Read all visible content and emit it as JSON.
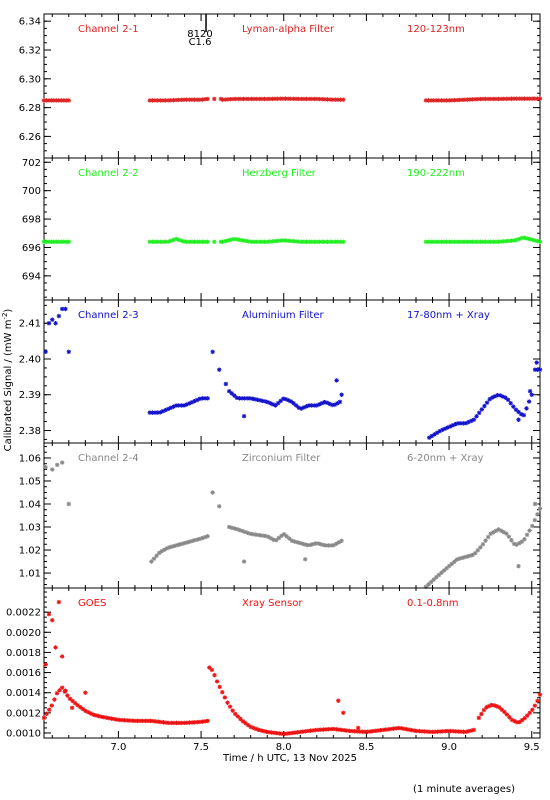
{
  "chart_data": {
    "type": "scatter",
    "xlabel": "Time / h UTC, 13 Nov 2025",
    "ylabel": "Calibrated Signal / (mW m",
    "ylabel_exp": "-2",
    "ylabel_close": ")",
    "footnote": "(1 minute averages)",
    "xlim": [
      6.55,
      9.55
    ],
    "xticks": [
      7.0,
      7.5,
      8.0,
      8.5,
      9.0,
      9.5
    ],
    "xticklabels": [
      "7.0",
      "7.5",
      "8.0",
      "8.5",
      "9.0",
      "9.5"
    ],
    "marker_annotation": {
      "x": 7.53,
      "label_top": "8120",
      "label_bottom": "C1.6"
    },
    "panels": [
      {
        "channel": "Channel 2-1",
        "filter": "Lyman-alpha Filter",
        "band": "120-123nm",
        "color": "#dd2222",
        "ylim": [
          6.245,
          6.345
        ],
        "yticks": [
          6.26,
          6.28,
          6.3,
          6.32,
          6.34
        ],
        "yticklabels": [
          "6.26",
          "6.28",
          "6.30",
          "6.32",
          "6.34"
        ],
        "series": [
          {
            "x": [
              6.55,
              6.61,
              6.66,
              6.7
            ],
            "y": [
              6.285,
              6.285,
              6.285,
              6.285
            ]
          },
          {
            "x": [
              7.19,
              7.3,
              7.4,
              7.5,
              7.54
            ],
            "y": [
              6.285,
              6.285,
              6.2855,
              6.2855,
              6.286
            ]
          },
          {
            "x": [
              7.63,
              7.7,
              7.8,
              7.9,
              8.0,
              8.1,
              8.2,
              8.3,
              8.36
            ],
            "y": [
              6.2855,
              6.286,
              6.286,
              6.286,
              6.2862,
              6.286,
              6.286,
              6.2855,
              6.2855
            ]
          },
          {
            "x": [
              8.86,
              9.0,
              9.1,
              9.2,
              9.3,
              9.4,
              9.55
            ],
            "y": [
              6.285,
              6.285,
              6.2855,
              6.286,
              6.286,
              6.2862,
              6.2862
            ]
          }
        ],
        "singles": [
          {
            "x": 7.58,
            "y": 6.286
          },
          {
            "x": 7.62,
            "y": 6.286
          }
        ]
      },
      {
        "channel": "Channel 2-2",
        "filter": "Herzberg Filter",
        "band": "190-222nm",
        "color": "#22ee22",
        "ylim": [
          692.3,
          702.3
        ],
        "yticks": [
          694,
          696,
          698,
          700,
          702
        ],
        "yticklabels": [
          "694",
          "696",
          "698",
          "700",
          "702"
        ],
        "series": [
          {
            "x": [
              6.55,
              6.62,
              6.7
            ],
            "y": [
              696.4,
              696.4,
              696.4
            ]
          },
          {
            "x": [
              7.19,
              7.3,
              7.35,
              7.4,
              7.5,
              7.54
            ],
            "y": [
              696.4,
              696.4,
              696.6,
              696.4,
              696.4,
              696.4
            ]
          },
          {
            "x": [
              7.63,
              7.7,
              7.8,
              7.9,
              8.0,
              8.1,
              8.2,
              8.3,
              8.36
            ],
            "y": [
              696.4,
              696.6,
              696.4,
              696.4,
              696.5,
              696.4,
              696.4,
              696.4,
              696.4
            ]
          },
          {
            "x": [
              8.86,
              9.0,
              9.1,
              9.2,
              9.3,
              9.4,
              9.45,
              9.55
            ],
            "y": [
              696.4,
              696.4,
              696.4,
              696.4,
              696.4,
              696.5,
              696.7,
              696.4
            ]
          }
        ],
        "singles": [
          {
            "x": 7.58,
            "y": 696.4
          },
          {
            "x": 7.62,
            "y": 696.4
          }
        ]
      },
      {
        "channel": "Channel 2-3",
        "filter": "Aluminium Filter",
        "band": "17-80nm + Xray",
        "color": "#1111cc",
        "ylim": [
          2.3765,
          2.4165
        ],
        "yticks": [
          2.38,
          2.39,
          2.4,
          2.41
        ],
        "yticklabels": [
          "2.38",
          "2.39",
          "2.40",
          "2.41"
        ],
        "series": [
          {
            "x": [
              7.19,
              7.25,
              7.3,
              7.35,
              7.4,
              7.45,
              7.5,
              7.54
            ],
            "y": [
              2.385,
              2.385,
              2.386,
              2.387,
              2.387,
              2.388,
              2.389,
              2.389
            ]
          },
          {
            "x": [
              7.67,
              7.72,
              7.8,
              7.9,
              7.95,
              8.0,
              8.05,
              8.1,
              8.15,
              8.2,
              8.25,
              8.3,
              8.34
            ],
            "y": [
              2.391,
              2.389,
              2.389,
              2.388,
              2.387,
              2.389,
              2.388,
              2.386,
              2.387,
              2.387,
              2.388,
              2.387,
              2.388
            ]
          },
          {
            "x": [
              8.88,
              8.95,
              9.0,
              9.05,
              9.1,
              9.15,
              9.2,
              9.25,
              9.3,
              9.35,
              9.4,
              9.45,
              9.5
            ],
            "y": [
              2.378,
              2.38,
              2.381,
              2.382,
              2.382,
              2.383,
              2.386,
              2.389,
              2.39,
              2.389,
              2.386,
              2.384,
              2.39
            ]
          },
          {
            "x": [
              9.52,
              9.55
            ],
            "y": [
              2.397,
              2.397
            ]
          }
        ],
        "singles": [
          {
            "x": 6.56,
            "y": 2.402
          },
          {
            "x": 6.58,
            "y": 2.41
          },
          {
            "x": 6.6,
            "y": 2.411
          },
          {
            "x": 6.62,
            "y": 2.41
          },
          {
            "x": 6.64,
            "y": 2.412
          },
          {
            "x": 6.66,
            "y": 2.414
          },
          {
            "x": 6.68,
            "y": 2.414
          },
          {
            "x": 6.7,
            "y": 2.402
          },
          {
            "x": 7.57,
            "y": 2.402
          },
          {
            "x": 7.61,
            "y": 2.397
          },
          {
            "x": 7.65,
            "y": 2.393
          },
          {
            "x": 7.76,
            "y": 2.384
          },
          {
            "x": 8.32,
            "y": 2.394
          },
          {
            "x": 8.35,
            "y": 2.39
          },
          {
            "x": 9.42,
            "y": 2.383
          },
          {
            "x": 9.49,
            "y": 2.391
          },
          {
            "x": 9.53,
            "y": 2.399
          }
        ]
      },
      {
        "channel": "Channel 2-4",
        "filter": "Zirconium Filter",
        "band": "6-20nm + Xray",
        "color": "#888888",
        "ylim": [
          1.0035,
          1.0665
        ],
        "yticks": [
          1.01,
          1.02,
          1.03,
          1.04,
          1.05,
          1.06
        ],
        "yticklabels": [
          "1.01",
          "1.02",
          "1.03",
          "1.04",
          "1.05",
          "1.06"
        ],
        "series": [
          {
            "x": [
              7.2,
              7.25,
              7.3,
              7.35,
              7.4,
              7.45,
              7.5,
              7.54
            ],
            "y": [
              1.015,
              1.019,
              1.021,
              1.022,
              1.023,
              1.024,
              1.025,
              1.026
            ]
          },
          {
            "x": [
              7.67,
              7.72,
              7.8,
              7.9,
              7.95,
              8.0,
              8.05,
              8.1,
              8.15,
              8.2,
              8.25,
              8.3,
              8.35
            ],
            "y": [
              1.03,
              1.029,
              1.027,
              1.026,
              1.024,
              1.027,
              1.024,
              1.023,
              1.022,
              1.023,
              1.022,
              1.022,
              1.024
            ]
          },
          {
            "x": [
              8.86,
              8.92,
              9.0,
              9.05,
              9.1,
              9.15,
              9.2,
              9.25,
              9.3,
              9.35,
              9.4,
              9.45,
              9.5,
              9.55
            ],
            "y": [
              1.004,
              1.008,
              1.013,
              1.016,
              1.017,
              1.018,
              1.022,
              1.027,
              1.029,
              1.027,
              1.022,
              1.024,
              1.03,
              1.038
            ]
          }
        ],
        "singles": [
          {
            "x": 6.56,
            "y": 1.056
          },
          {
            "x": 6.6,
            "y": 1.055
          },
          {
            "x": 6.63,
            "y": 1.057
          },
          {
            "x": 6.66,
            "y": 1.058
          },
          {
            "x": 6.7,
            "y": 1.04
          },
          {
            "x": 7.57,
            "y": 1.045
          },
          {
            "x": 7.61,
            "y": 1.039
          },
          {
            "x": 7.76,
            "y": 1.015
          },
          {
            "x": 8.13,
            "y": 1.016
          },
          {
            "x": 9.42,
            "y": 1.013
          },
          {
            "x": 9.52,
            "y": 1.04
          }
        ]
      },
      {
        "channel": "GOES",
        "filter": "Xray Sensor",
        "band": "0.1-0.8nm",
        "color": "#ee1111",
        "ylim": [
          0.00095,
          0.00244
        ],
        "yticks": [
          0.001,
          0.0012,
          0.0014,
          0.0016,
          0.0018,
          0.002,
          0.0022
        ],
        "yticklabels": [
          "0.0010",
          "0.0012",
          "0.0014",
          "0.0016",
          "0.0018",
          "0.0020",
          "0.0022"
        ],
        "series": [
          {
            "x": [
              6.55,
              6.57,
              6.6,
              6.63,
              6.66,
              6.7,
              6.75,
              6.8,
              6.85,
              6.9,
              7.0,
              7.1,
              7.2,
              7.3,
              7.4,
              7.5,
              7.54
            ],
            "y": [
              0.00115,
              0.0012,
              0.00128,
              0.0014,
              0.00145,
              0.00135,
              0.00128,
              0.00122,
              0.00118,
              0.00116,
              0.00113,
              0.00112,
              0.00112,
              0.0011,
              0.0011,
              0.00111,
              0.00112
            ]
          },
          {
            "x": [
              7.55,
              7.57,
              7.6,
              7.63,
              7.66,
              7.7,
              7.75,
              7.8,
              7.85,
              7.9,
              7.95,
              8.0,
              8.1,
              8.2,
              8.3,
              8.4,
              8.5,
              8.6,
              8.7,
              8.8,
              8.9,
              9.0,
              9.1,
              9.15
            ],
            "y": [
              0.00165,
              0.00162,
              0.0015,
              0.0014,
              0.0013,
              0.0012,
              0.00112,
              0.00106,
              0.00103,
              0.00101,
              0.001,
              0.00099,
              0.00101,
              0.00103,
              0.00104,
              0.00102,
              0.00101,
              0.00103,
              0.00105,
              0.00102,
              0.00101,
              0.00102,
              0.00101,
              0.00103
            ]
          },
          {
            "x": [
              9.18,
              9.22,
              9.26,
              9.3,
              9.34,
              9.38,
              9.42,
              9.46,
              9.5,
              9.53,
              9.55
            ],
            "y": [
              0.00115,
              0.00125,
              0.00128,
              0.00126,
              0.0012,
              0.00113,
              0.0011,
              0.00115,
              0.00122,
              0.0013,
              0.00138
            ]
          }
        ],
        "singles": [
          {
            "x": 6.56,
            "y": 0.00168
          },
          {
            "x": 6.58,
            "y": 0.00218
          },
          {
            "x": 6.6,
            "y": 0.00212
          },
          {
            "x": 6.62,
            "y": 0.00185
          },
          {
            "x": 6.64,
            "y": 0.0023
          },
          {
            "x": 6.66,
            "y": 0.00176
          },
          {
            "x": 6.68,
            "y": 0.00142
          },
          {
            "x": 6.72,
            "y": 0.00125
          },
          {
            "x": 6.8,
            "y": 0.0014
          },
          {
            "x": 8.33,
            "y": 0.00132
          },
          {
            "x": 8.36,
            "y": 0.0012
          },
          {
            "x": 8.45,
            "y": 0.00105
          }
        ]
      }
    ]
  }
}
